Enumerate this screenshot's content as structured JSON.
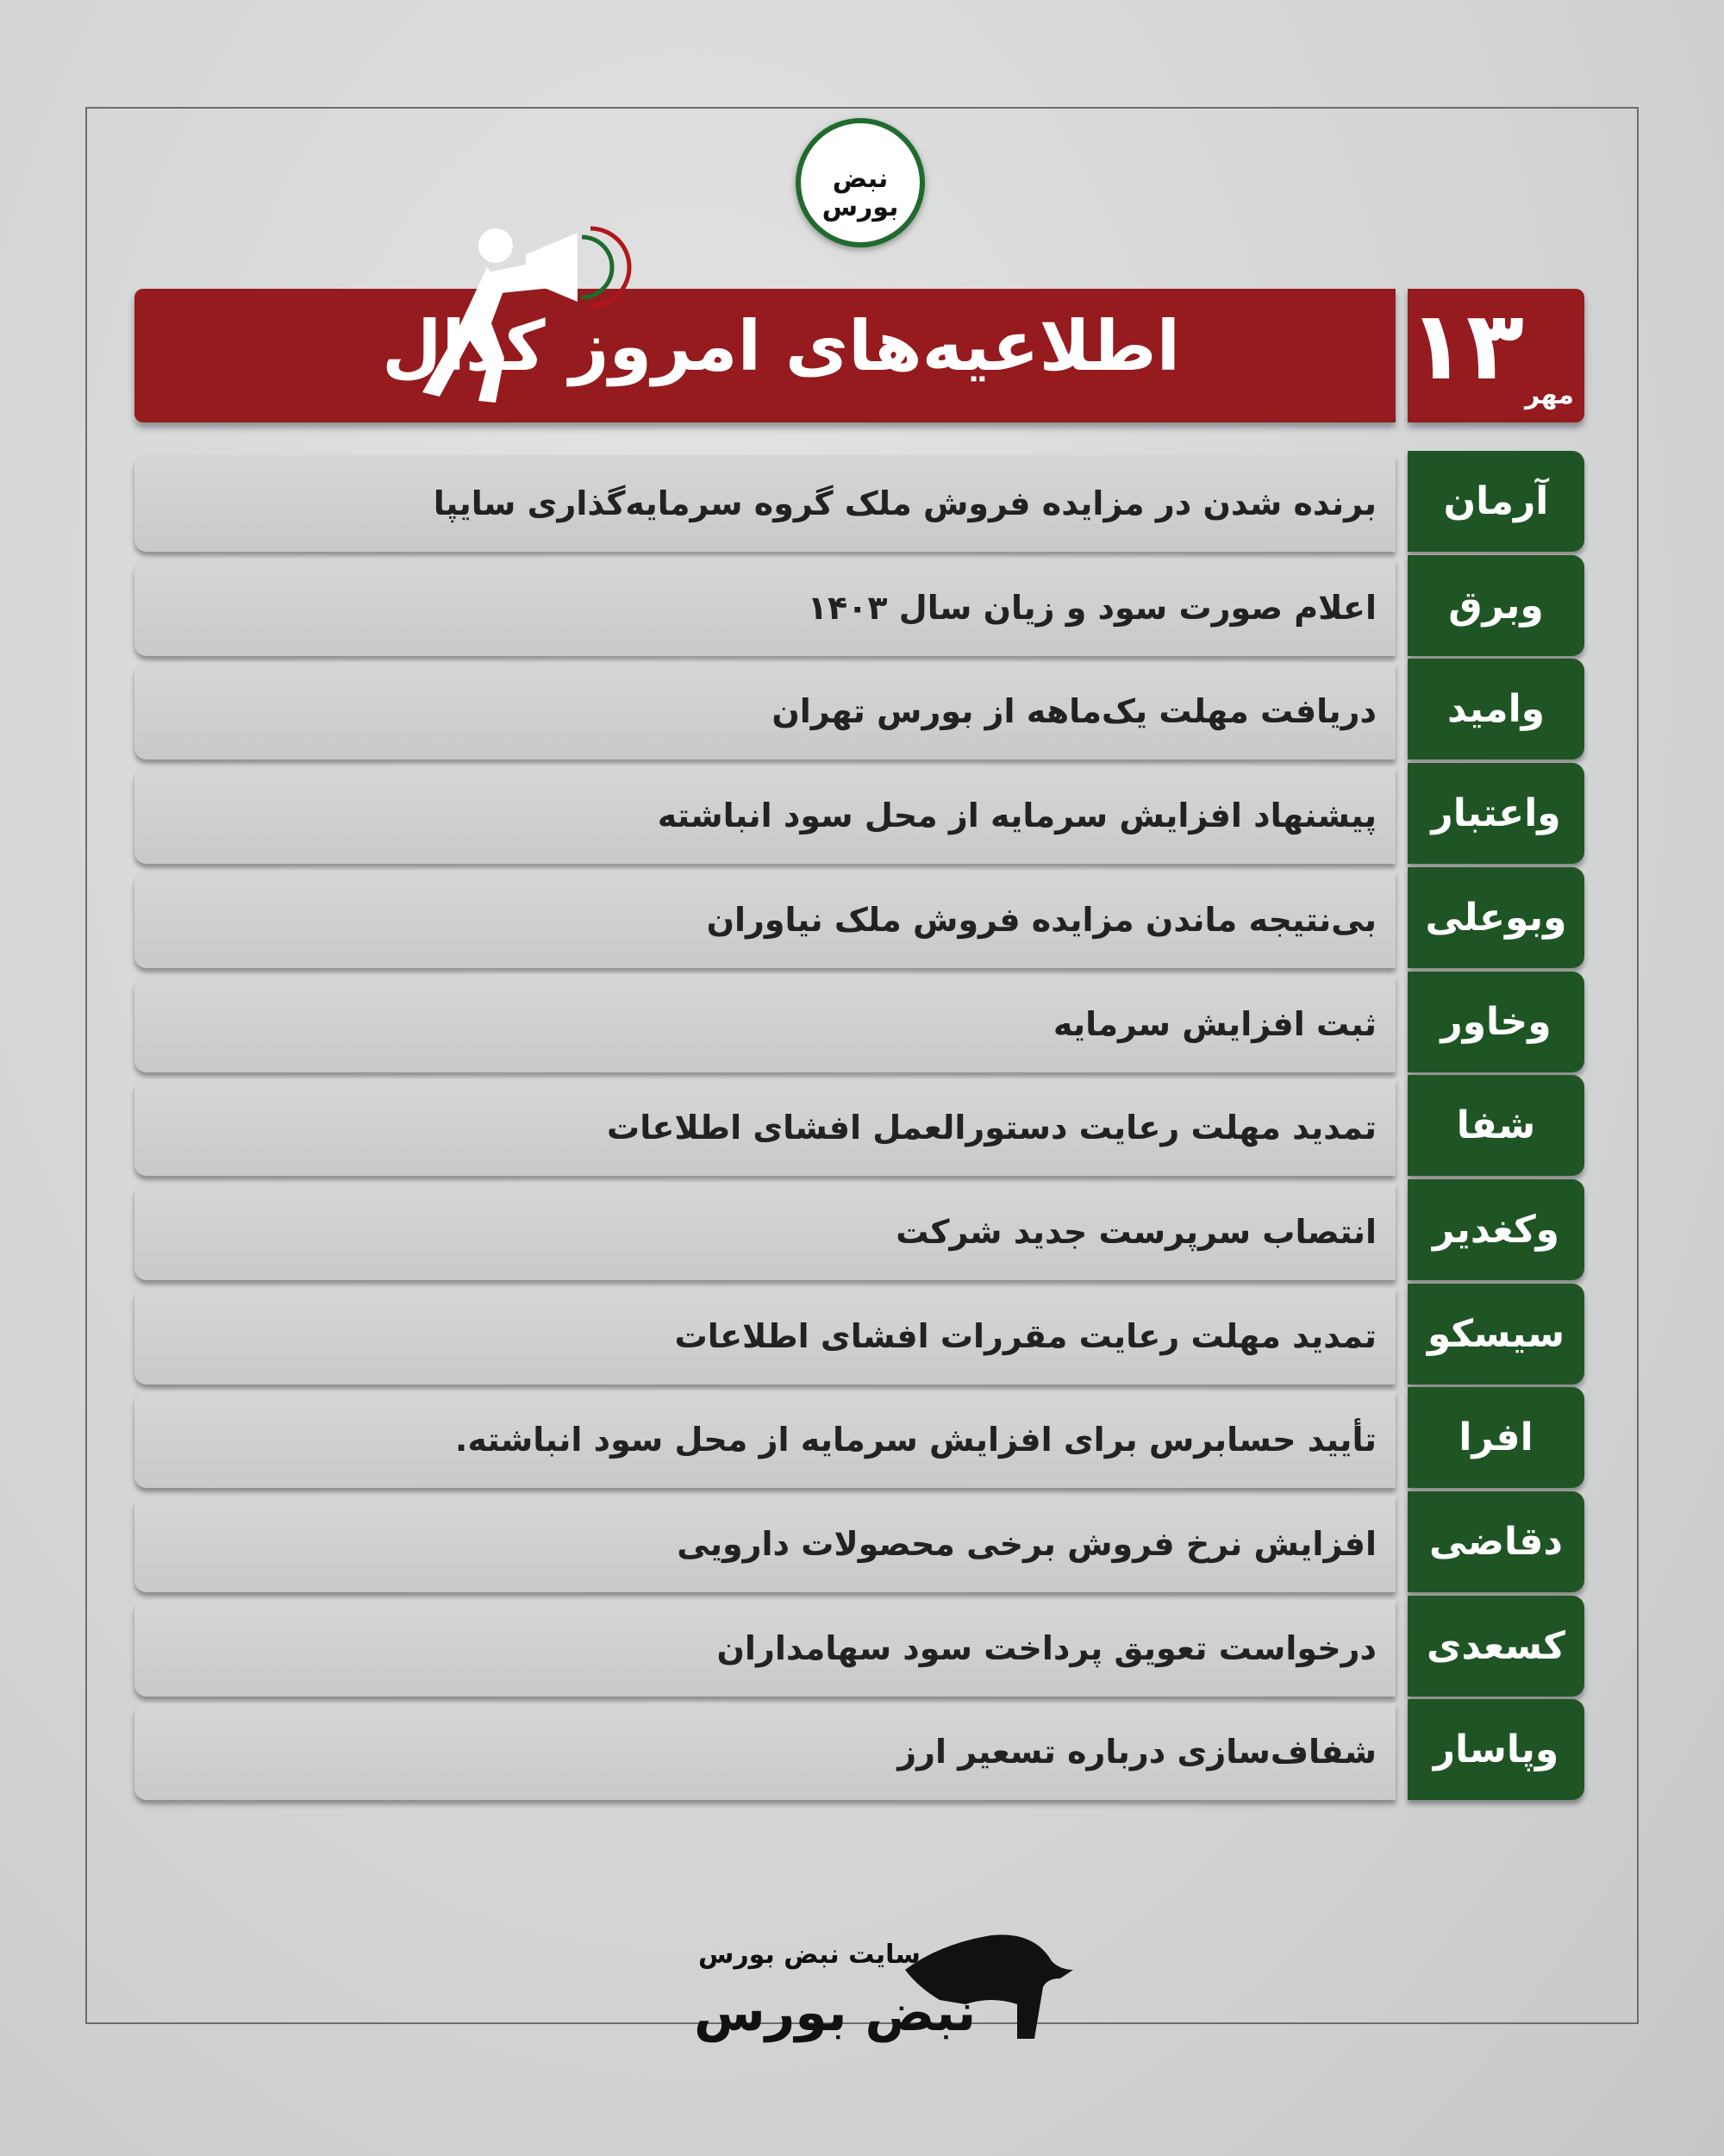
{
  "logo": {
    "top_text": "نبض بورس",
    "footer_site": "سایت نبض بورس",
    "footer_brand": "نبض بورس"
  },
  "header": {
    "title": "اطلاعیه‌های امروز کدال",
    "day": "۱۳",
    "month": "مهر"
  },
  "colors": {
    "header": "#951b1e",
    "symbol": "#1f5525",
    "row": "#d0d0d0"
  },
  "rows": [
    {
      "symbol": "آرمان",
      "text": "برنده شدن در مزایده فروش ملک گروه سرمایه‌گذاری سایپا"
    },
    {
      "symbol": "وبرق",
      "text": "اعلام صورت سود و زیان سال ۱۴۰۳"
    },
    {
      "symbol": "وامید",
      "text": "دریافت مهلت یک‌ماهه از بورس تهران"
    },
    {
      "symbol": "واعتبار",
      "text": "پیشنهاد افزایش سرمایه از محل سود انباشته"
    },
    {
      "symbol": "وبوعلی",
      "text": "بی‌نتیجه ماندن مزایده فروش ملک نیاوران"
    },
    {
      "symbol": "وخاور",
      "text": "ثبت افزایش سرمایه"
    },
    {
      "symbol": "شفا",
      "text": "تمدید مهلت رعایت دستورالعمل افشای اطلاعات"
    },
    {
      "symbol": "وکغدیر",
      "text": "انتصاب سرپرست جدید شرکت"
    },
    {
      "symbol": "سیسکو",
      "text": "تمدید مهلت رعایت مقررات افشای اطلاعات"
    },
    {
      "symbol": "افرا",
      "text": "تأیید حسابرس برای افزایش سرمایه از محل سود انباشته."
    },
    {
      "symbol": "دقاضی",
      "text": "افزایش نرخ فروش برخی محصولات دارویی"
    },
    {
      "symbol": "کسعدی",
      "text": "درخواست تعویق پرداخت سود سهامداران"
    },
    {
      "symbol": "وپاسار",
      "text": "شفاف‌سازی درباره تسعیر ارز"
    }
  ]
}
